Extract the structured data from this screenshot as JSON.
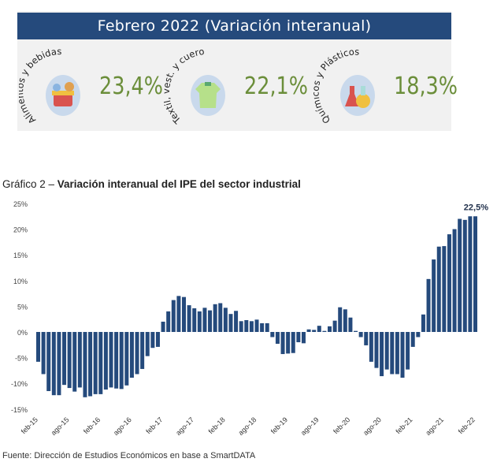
{
  "panel": {
    "header": "Febrero 2022 (Variación  interanual)",
    "kpis": [
      {
        "label": "Alimentos y bebidas",
        "value": "23,4%",
        "icon": "grocery-basket-icon"
      },
      {
        "label": "Textil, vest. y cuero",
        "value": "22,1%",
        "icon": "shirt-icon"
      },
      {
        "label": "Químicos y Plásticos",
        "value": "18,3%",
        "icon": "flask-icon"
      }
    ],
    "value_color": "#6b8e3a",
    "header_color": "#254a7c"
  },
  "chart_title_prefix": "Gráfico 2 – ",
  "chart_title_bold": "Variación interanual del IPE del sector industrial",
  "source": "Fuente: Dirección de Estudios Económicos en base a SmartDATA",
  "chart_data": {
    "type": "bar",
    "title": "Variación interanual del IPE del sector industrial",
    "xlabel": "",
    "ylabel": "",
    "ylim": [
      -15,
      25
    ],
    "yticks": [
      "-15%",
      "-10%",
      "-5%",
      "0%",
      "5%",
      "10%",
      "15%",
      "20%",
      "25%"
    ],
    "xtick_labels": [
      "feb-15",
      "ago-15",
      "feb-16",
      "ago-16",
      "feb-17",
      "ago-17",
      "feb-18",
      "ago-18",
      "feb-19",
      "ago-19",
      "feb-20",
      "ago-20",
      "feb-21",
      "ago-21",
      "feb-22"
    ],
    "start": "feb-15",
    "frequency": "monthly",
    "annotation": "22,5%",
    "color": "#254a7c",
    "values": [
      -5.8,
      -8.2,
      -11.5,
      -12.3,
      -12.3,
      -10.3,
      -10.9,
      -11.6,
      -10.8,
      -12.7,
      -12.5,
      -12.1,
      -12.1,
      -11.2,
      -10.8,
      -11.0,
      -11.1,
      -10.4,
      -8.9,
      -8.2,
      -7.2,
      -4.7,
      -3.1,
      -2.9,
      2.0,
      4.0,
      6.2,
      7.0,
      6.8,
      5.2,
      4.6,
      4.0,
      4.7,
      4.2,
      5.4,
      5.6,
      4.7,
      3.5,
      4.1,
      2.1,
      2.3,
      2.1,
      2.4,
      1.7,
      1.7,
      -1.0,
      -2.3,
      -4.3,
      -4.2,
      -4.1,
      -2.0,
      -2.2,
      0.5,
      0.4,
      1.2,
      0.2,
      1.1,
      2.2,
      4.8,
      4.4,
      2.8,
      0.2,
      -1.0,
      -2.6,
      -5.8,
      -7.0,
      -8.6,
      -7.3,
      -8.2,
      -8.2,
      -8.9,
      -7.3,
      -2.9,
      -1.0,
      3.4,
      10.3,
      14.1,
      16.6,
      16.7,
      19.0,
      20.0,
      22.0,
      21.8,
      22.5,
      22.5
    ]
  }
}
